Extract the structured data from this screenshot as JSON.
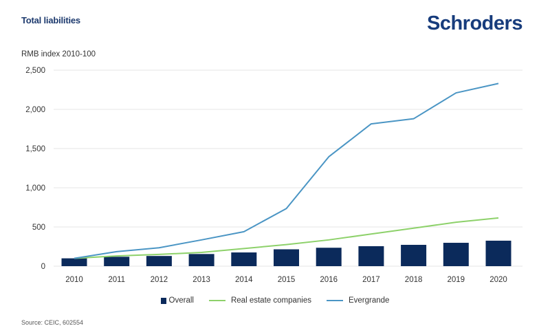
{
  "header": {
    "title": "Total liabilities",
    "brand": "Schroders",
    "unit_label": "RMB index 2010-100"
  },
  "footer": {
    "source": "Source: CEIC, 602554"
  },
  "colors": {
    "overall": "#0b2a5b",
    "real_estate": "#8dd16a",
    "evergrande": "#4a95c4",
    "grid": "#e6e6e6",
    "title": "#1d3a6e",
    "brand": "#173c7c"
  },
  "chart_data": {
    "type": "bar",
    "title": "Total liabilities",
    "ylabel": "RMB index 2010-100",
    "xlabel": "",
    "ylim": [
      0,
      2500
    ],
    "yticks": [
      0,
      500,
      1000,
      1500,
      2000,
      2500
    ],
    "ytick_labels": [
      "0",
      "500",
      "1,000",
      "1,500",
      "2,000",
      "2,500"
    ],
    "grid": true,
    "legend_position": "bottom-center",
    "categories": [
      "2010",
      "2011",
      "2012",
      "2013",
      "2014",
      "2015",
      "2016",
      "2017",
      "2018",
      "2019",
      "2020"
    ],
    "series": [
      {
        "name": "Overall",
        "type": "bar",
        "values": [
          100,
          120,
          130,
          155,
          175,
          215,
          235,
          255,
          272,
          298,
          325
        ]
      },
      {
        "name": "Real estate companies",
        "type": "line",
        "values": [
          100,
          130,
          150,
          175,
          225,
          275,
          335,
          410,
          485,
          560,
          615
        ]
      },
      {
        "name": "Evergrande",
        "type": "line",
        "values": [
          100,
          185,
          235,
          335,
          440,
          735,
          1395,
          1815,
          1880,
          2210,
          2330
        ]
      }
    ]
  }
}
